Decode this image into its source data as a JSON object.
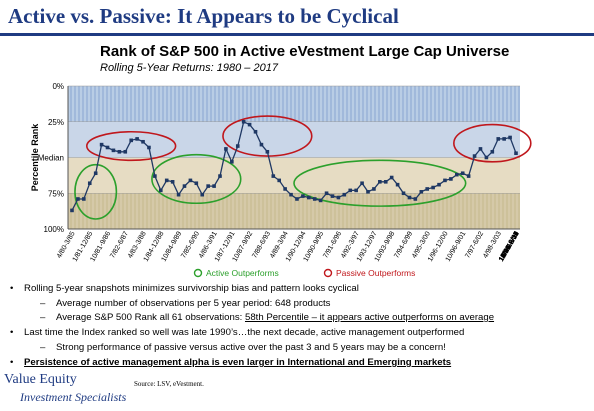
{
  "slide_title": "Active vs. Passive: It Appears to be Cyclical",
  "chart_data": {
    "type": "line",
    "title": "Rank of S&P 500 in Active eVestment Large Cap Universe",
    "subtitle": "Rolling 5-Year Returns: 1980 – 2017",
    "ylabel": "Percentile Rank",
    "y_ticks": [
      "0%",
      "25%",
      "Median",
      "75%",
      "100%"
    ],
    "y_tick_values": [
      0,
      25,
      50,
      75,
      100
    ],
    "ylim": [
      0,
      100
    ],
    "y_inverted": true,
    "x_tick_labels": [
      "4/80-3/85",
      "1/81-12/85",
      "10/81-9/86",
      "7/82-6/87",
      "4/83-3/88",
      "1/84-12/88",
      "10/84-9/89",
      "7/85-6/90",
      "4/86-3/91",
      "1/87-12/91",
      "10/87-9/92",
      "7/88-6/93",
      "4/89-3/94",
      "1/90-12/94",
      "10/90-9/95",
      "7/91-6/96",
      "4/92-3/97",
      "1/93-12/97",
      "10/93-9/98",
      "7/94-6/99",
      "4/95-3/00",
      "1/96-12/00",
      "10/96-9/01",
      "7/97-6/02",
      "4/98-3/03",
      "1/99-12/03",
      "10/99-9/04",
      "7/00-6/05",
      "4/01-3/06",
      "1/02-12/06",
      "10/02-9/07",
      "7/03-6/08",
      "4/04-3/09",
      "1/05-12/09",
      "10/05-9/10",
      "7/06-6/11",
      "4/07-3/12",
      "1/08-12/12",
      "10/08-9/13",
      "7/09-6/14",
      "4/10-3/15",
      "1/11-12/15",
      "10/11-9/16"
    ],
    "x_label_every": 3,
    "series": [
      {
        "values": [
          87,
          79,
          79,
          68,
          61,
          41,
          43,
          45,
          46,
          46,
          38,
          37,
          39,
          43,
          63,
          73,
          66,
          67,
          76,
          70,
          66,
          68,
          76,
          70,
          70,
          63,
          44,
          53,
          42,
          25,
          27,
          32,
          41,
          46,
          63,
          66,
          72,
          76,
          79,
          77,
          78,
          79,
          80,
          75,
          77,
          78,
          76,
          73,
          73,
          68,
          74,
          72,
          67,
          67,
          64,
          69,
          75,
          78,
          79,
          74,
          72,
          71,
          69,
          66,
          65,
          62,
          61,
          63,
          49,
          44,
          50,
          46,
          37,
          37,
          36,
          47
        ]
      }
    ],
    "ellipses": [
      {
        "label": "Active Outperforms",
        "cx": 4,
        "cy": 74,
        "rx": 3.5,
        "ry": 19
      },
      {
        "label": "Passive Outperforms",
        "cx": 10,
        "cy": 42,
        "rx": 7.5,
        "ry": 10
      },
      {
        "label": "Active Outperforms",
        "cx": 21,
        "cy": 65,
        "rx": 7.5,
        "ry": 17
      },
      {
        "label": "Passive Outperforms",
        "cx": 33,
        "cy": 35,
        "rx": 7.5,
        "ry": 14
      },
      {
        "label": "Active Outperforms",
        "cx": 52,
        "cy": 68,
        "rx": 14.5,
        "ry": 16
      },
      {
        "label": "Passive Outperforms",
        "cx": 71,
        "cy": 40,
        "rx": 6.5,
        "ry": 13
      }
    ],
    "legend": [
      {
        "label": "Active Outperforms",
        "color": "#2ca02c"
      },
      {
        "label": "Passive Outperforms",
        "color": "#c0171c"
      }
    ],
    "colors": {
      "line": "#1f3864",
      "active": "#2ca02c",
      "passive": "#c0171c",
      "band_top": "#b9cde5",
      "band_mid_upper": "#c9d6e8",
      "band_mid_lower": "#e6dcc3",
      "band_bottom": "#d5c9a8"
    }
  },
  "bullets": [
    {
      "level": 1,
      "text": "Rolling 5-year snapshots minimizes survivorship  bias and pattern looks cyclical"
    },
    {
      "level": 2,
      "text": "Average number of observations  per 5 year period:  648 products"
    },
    {
      "level": 2,
      "text": "Average S&P 500 Rank all 61 observations:  ",
      "underlined": "58th Percentile – it appears active outperforms on average"
    },
    {
      "level": 1,
      "text": "Last time the Index ranked so well was late 1990’s…the next decade, active management  outperformed"
    },
    {
      "level": 2,
      "text": "Strong performance of passive versus active over the past 3 and 5 years may be a concern!"
    },
    {
      "level": 1,
      "text": "Persistence of active management alpha is even larger in International and Emerging markets"
    }
  ],
  "brand": {
    "line1": "Value Equity",
    "line2": "Investment Specialists"
  },
  "source": "Source: LSV, eVestment."
}
